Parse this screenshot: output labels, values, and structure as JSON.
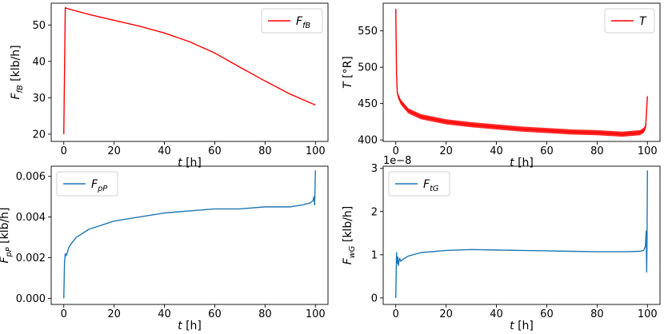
{
  "chart_data": [
    {
      "type": "line",
      "id": "ffb",
      "xlabel": "t [h]",
      "ylabel": "F_fB [klb/h]",
      "xlim": [
        -5,
        105
      ],
      "ylim": [
        18,
        56
      ],
      "xticks": [
        0,
        20,
        40,
        60,
        80,
        100
      ],
      "yticks": [
        20,
        30,
        40,
        50
      ],
      "legend": {
        "label": "F_fB",
        "position": "top-right",
        "color": "#ff0000"
      },
      "series": [
        {
          "name": "F_fB",
          "color": "#ff0000",
          "x": [
            0,
            0.6,
            1,
            10,
            20,
            30,
            40,
            50,
            60,
            70,
            80,
            90,
            100
          ],
          "y": [
            20,
            54.8,
            54.6,
            52.9,
            51.3,
            49.7,
            47.8,
            45.4,
            42.3,
            38.4,
            34.6,
            31.0,
            28.0
          ]
        }
      ]
    },
    {
      "type": "line",
      "id": "temp",
      "xlabel": "t [h]",
      "ylabel": "T [°R]",
      "xlim": [
        -5,
        105
      ],
      "ylim": [
        398,
        588
      ],
      "xticks": [
        0,
        20,
        40,
        60,
        80,
        100
      ],
      "yticks": [
        400,
        450,
        500,
        550
      ],
      "legend": {
        "label": "T",
        "position": "top-right",
        "color": "#ff0000"
      },
      "series": [
        {
          "name": "T",
          "color": "#ff0000",
          "band": 3.5,
          "x": [
            0,
            0.3,
            0.6,
            1,
            2,
            5,
            10,
            20,
            30,
            40,
            50,
            60,
            70,
            80,
            90,
            97,
            98.5,
            99.3,
            100
          ],
          "y": [
            580,
            490,
            465,
            460,
            452,
            440,
            432,
            425,
            421,
            418,
            415,
            413,
            411,
            410,
            408,
            410,
            413,
            418,
            460
          ]
        }
      ]
    },
    {
      "type": "line",
      "id": "fpp",
      "xlabel": "t [h]",
      "ylabel": "F_pP [klb/h]",
      "xlim": [
        -5,
        105
      ],
      "ylim": [
        -0.0003,
        0.0065
      ],
      "xticks": [
        0,
        20,
        40,
        60,
        80,
        100
      ],
      "yticks": [
        0.0,
        0.002,
        0.004,
        0.006
      ],
      "yticklabels": [
        "0.000",
        "0.002",
        "0.004",
        "0.006"
      ],
      "legend": {
        "label": "F_pP",
        "position": "top-left",
        "color": "#1f77b4"
      },
      "series": [
        {
          "name": "F_pP",
          "color": "#1f77b4",
          "x": [
            0,
            0.3,
            0.6,
            1,
            2,
            3,
            5,
            10,
            20,
            30,
            40,
            50,
            60,
            70,
            80,
            90,
            95,
            98,
            99,
            99.4,
            99.7,
            100
          ],
          "y": [
            0.0,
            0.0018,
            0.0022,
            0.0021,
            0.0025,
            0.0027,
            0.003,
            0.0034,
            0.0038,
            0.004,
            0.0042,
            0.0043,
            0.0044,
            0.0044,
            0.0045,
            0.0045,
            0.0046,
            0.0047,
            0.0048,
            0.005,
            0.0046,
            0.0063
          ]
        }
      ]
    },
    {
      "type": "line",
      "id": "ftg",
      "xlabel": "t [h]",
      "ylabel": "F_wG [klb/h]",
      "offset_text": "1e−8",
      "xlim": [
        -5,
        105
      ],
      "ylim": [
        -0.15,
        3.05
      ],
      "xticks": [
        0,
        20,
        40,
        60,
        80,
        100
      ],
      "yticks": [
        0,
        1,
        2,
        3
      ],
      "legend": {
        "label": "F_tG",
        "position": "top-left",
        "color": "#1f77b4"
      },
      "series": [
        {
          "name": "F_tG",
          "color": "#1f77b4",
          "x": [
            0,
            0.3,
            0.5,
            0.8,
            1,
            1.5,
            2,
            3,
            5,
            10,
            20,
            30,
            40,
            50,
            60,
            70,
            80,
            90,
            97,
            98.5,
            99.2,
            99.5,
            99.7,
            99.85,
            100
          ],
          "y": [
            0.0,
            1.05,
            0.8,
            0.95,
            0.75,
            0.92,
            0.85,
            0.9,
            0.97,
            1.05,
            1.1,
            1.12,
            1.11,
            1.1,
            1.09,
            1.08,
            1.07,
            1.07,
            1.08,
            1.1,
            1.2,
            1.55,
            0.6,
            1.3,
            2.95
          ]
        }
      ]
    }
  ]
}
